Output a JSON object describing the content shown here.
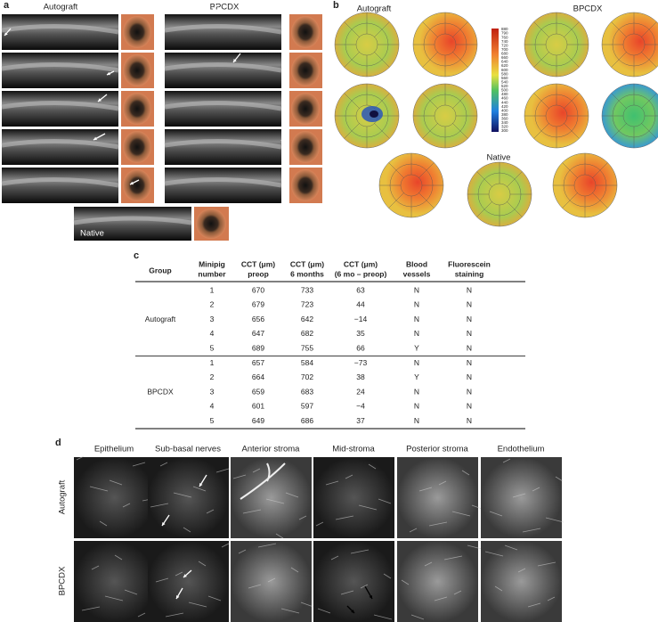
{
  "panel_a": {
    "label": "a",
    "left_title": "Autograft",
    "right_title": "BPCDX",
    "native_label": "Native"
  },
  "panel_b": {
    "label": "b",
    "left_title": "Autograft",
    "right_title": "BPCDX",
    "native_title": "Native",
    "colorbar_ticks": [
      "880",
      "790",
      "760",
      "740",
      "720",
      "700",
      "680",
      "660",
      "640",
      "620",
      "600",
      "580",
      "560",
      "540",
      "520",
      "500",
      "480",
      "460",
      "440",
      "420",
      "400",
      "380",
      "360",
      "340",
      "320",
      "300"
    ]
  },
  "panel_c": {
    "label": "c",
    "headers": [
      [
        "Group"
      ],
      [
        "Minipig",
        "number"
      ],
      [
        "CCT (μm)",
        "preop"
      ],
      [
        "CCT (μm)",
        "6 months"
      ],
      [
        "CCT (μm)",
        "(6 mo – preop)"
      ],
      [
        "Blood",
        "vessels"
      ],
      [
        "Fluorescein",
        "staining"
      ]
    ],
    "groups": [
      {
        "name": "Autograft",
        "rows": [
          [
            "1",
            "670",
            "733",
            "63",
            "N",
            "N"
          ],
          [
            "2",
            "679",
            "723",
            "44",
            "N",
            "N"
          ],
          [
            "3",
            "656",
            "642",
            "−14",
            "N",
            "N"
          ],
          [
            "4",
            "647",
            "682",
            "35",
            "N",
            "N"
          ],
          [
            "5",
            "689",
            "755",
            "66",
            "Y",
            "N"
          ]
        ]
      },
      {
        "name": "BPCDX",
        "rows": [
          [
            "1",
            "657",
            "584",
            "−73",
            "N",
            "N"
          ],
          [
            "2",
            "664",
            "702",
            "38",
            "Y",
            "N"
          ],
          [
            "3",
            "659",
            "683",
            "24",
            "N",
            "N"
          ],
          [
            "4",
            "601",
            "597",
            "−4",
            "N",
            "N"
          ],
          [
            "5",
            "649",
            "686",
            "37",
            "N",
            "N"
          ]
        ]
      }
    ]
  },
  "panel_d": {
    "label": "d",
    "columns": [
      "Epithelium",
      "Sub-basal nerves",
      "Anterior stroma",
      "Mid-stroma",
      "Posterior stroma",
      "Endothelium"
    ],
    "rows": [
      "Autograft",
      "BPCDX"
    ]
  }
}
